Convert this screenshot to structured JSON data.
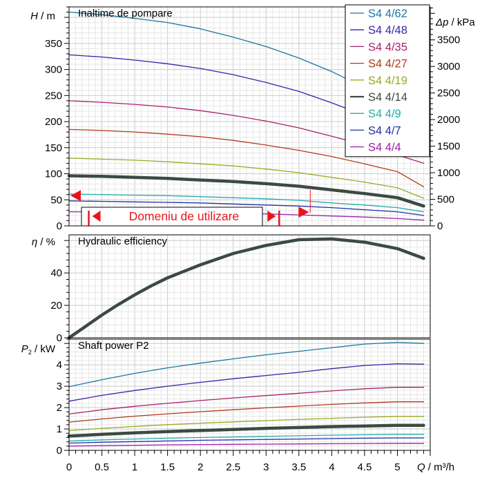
{
  "chart_data": {
    "type": "line",
    "x_axis": {
      "label_var": "Q",
      "label_unit": " / m³/h",
      "ticks": [
        0,
        0.5,
        1,
        1.5,
        2,
        2.5,
        3,
        3.5,
        4,
        4.5,
        5
      ],
      "tick_labels": [
        "0",
        "0.5",
        "1",
        "1.5",
        "2",
        "2.5",
        "3",
        "3.5",
        "4",
        "4.5",
        "5"
      ],
      "range": [
        0,
        5.5
      ]
    },
    "panels": [
      {
        "id": "head",
        "title": "Inaltime de pompare",
        "ylabel_var": "H",
        "ylabel_unit": " / m",
        "ylim": [
          0,
          420
        ],
        "yticks": [
          0,
          50,
          100,
          150,
          200,
          250,
          300,
          350
        ],
        "ytick_labels": [
          "0",
          "50",
          "100",
          "150",
          "200",
          "250",
          "300",
          "350"
        ],
        "right_axis": {
          "label_var": "Δp",
          "label_unit": " / kPa",
          "ticks": [
            0,
            500,
            1000,
            1500,
            2000,
            2500,
            3000,
            3500
          ],
          "tick_labels": [
            "0",
            "500",
            "1000",
            "1500",
            "2000",
            "2500",
            "3000",
            "3500"
          ],
          "range": [
            0,
            4120
          ]
        },
        "series": [
          {
            "name": "S4 4/62",
            "color": "#1a75a3",
            "width": 1.3,
            "x": [
              0,
              0.5,
              1,
              1.5,
              2,
              2.5,
              3,
              3.5,
              4,
              4.5,
              5
            ],
            "y": [
              410,
              405,
              398,
              390,
              378,
              362,
              344,
              322,
              296,
              265,
              230
            ]
          },
          {
            "name": "S4 4/48",
            "color": "#3a1fa8",
            "width": 1.3,
            "x": [
              0,
              0.5,
              1,
              1.5,
              2,
              2.5,
              3,
              3.5,
              4,
              4.5,
              5,
              5.4
            ],
            "y": [
              328,
              324,
              318,
              311,
              302,
              290,
              275,
              258,
              236,
              212,
              188,
              165
            ]
          },
          {
            "name": "S4 4/35",
            "color": "#a8206a",
            "width": 1.3,
            "x": [
              0,
              0.5,
              1,
              1.5,
              2,
              2.5,
              3,
              3.5,
              4,
              4.5,
              5,
              5.4
            ],
            "y": [
              240,
              237,
              233,
              228,
              221,
              212,
              201,
              188,
              172,
              155,
              136,
              120
            ]
          },
          {
            "name": "S4 4/27",
            "color": "#b03a17",
            "width": 1.3,
            "x": [
              0,
              0.5,
              1,
              1.5,
              2,
              2.5,
              3,
              3.5,
              4,
              4.5,
              5,
              5.4
            ],
            "y": [
              185,
              183,
              180,
              176,
              171,
              164,
              155,
              145,
              133,
              119,
              104,
              75
            ]
          },
          {
            "name": "S4 4/19",
            "color": "#98ab1f",
            "width": 1.3,
            "x": [
              0,
              0.5,
              1,
              1.5,
              2,
              2.5,
              3,
              3.5,
              4,
              4.5,
              5,
              5.4
            ],
            "y": [
              130,
              128,
              126,
              123,
              119,
              115,
              109,
              102,
              93,
              84,
              73,
              53
            ]
          },
          {
            "name": "S4 4/14",
            "color": "#3b4a43",
            "width": 4.5,
            "x": [
              0,
              0.5,
              1,
              1.5,
              2,
              2.5,
              3,
              3.5,
              4,
              4.5,
              5,
              5.4
            ],
            "y": [
              96,
              95,
              93,
              91,
              88,
              85,
              81,
              76,
              69,
              62,
              54,
              38
            ]
          },
          {
            "name": "S4 4/9",
            "color": "#22aaa8",
            "width": 1.3,
            "x": [
              0,
              0.5,
              1,
              1.5,
              2,
              2.5,
              3,
              3.5,
              4,
              4.5,
              5,
              5.4
            ],
            "y": [
              61,
              60,
              59,
              58,
              56,
              54,
              52,
              49,
              44,
              40,
              35,
              27
            ]
          },
          {
            "name": "S4 4/7",
            "color": "#1f2fa8",
            "width": 1.3,
            "x": [
              0,
              0.5,
              1,
              1.5,
              2,
              2.5,
              3,
              3.5,
              4,
              4.5,
              5,
              5.4
            ],
            "y": [
              48,
              47,
              46,
              45,
              44,
              42,
              40,
              38,
              35,
              31,
              27,
              20
            ]
          },
          {
            "name": "S4 4/4",
            "color": "#9b1fa8",
            "width": 1.3,
            "x": [
              0,
              0.5,
              1,
              1.5,
              2,
              2.5,
              3,
              3.5,
              4,
              4.5,
              5,
              5.4
            ],
            "y": [
              27,
              27,
              26,
              26,
              25,
              24,
              23,
              21,
              19,
              17,
              14,
              11
            ]
          }
        ]
      },
      {
        "id": "efficiency",
        "title": "Hydraulic efficiency",
        "ylabel_var": "η",
        "ylabel_unit": " / %",
        "ylim": [
          0,
          63.5
        ],
        "yticks": [
          0,
          20,
          40
        ],
        "ytick_labels": [
          "0",
          "20",
          "40"
        ],
        "series": [
          {
            "name": "",
            "color": "#3b4a43",
            "width": 4.5,
            "x": [
              0,
              0.25,
              0.5,
              0.75,
              1,
              1.25,
              1.5,
              1.75,
              2,
              2.5,
              3,
              3.5,
              4,
              4.5,
              5,
              5.4
            ],
            "y": [
              0,
              7,
              14,
              20.5,
              26.5,
              32,
              37,
              41,
              45,
              52,
              57,
              60.5,
              61,
              59,
              55,
              49
            ]
          }
        ]
      },
      {
        "id": "power",
        "title": "Shaft power P2",
        "ylabel_var": "P",
        "ylabel_sub": "2",
        "ylabel_unit": " / kW",
        "ylim": [
          0,
          5.2
        ],
        "yticks": [
          0,
          1,
          2,
          3,
          4
        ],
        "ytick_labels": [
          "0",
          "1",
          "2",
          "3",
          "4"
        ],
        "series": [
          {
            "name": "S4 4/62",
            "color": "#1a75a3",
            "width": 1.3,
            "x": [
              0,
              0.5,
              1,
              1.5,
              2,
              2.5,
              3,
              3.5,
              4,
              4.5,
              5,
              5.4
            ],
            "y": [
              2.98,
              3.3,
              3.6,
              3.86,
              4.08,
              4.28,
              4.47,
              4.63,
              4.8,
              4.97,
              5.05,
              5.0
            ]
          },
          {
            "name": "S4 4/48",
            "color": "#3a1fa8",
            "width": 1.3,
            "x": [
              0,
              0.5,
              1,
              1.5,
              2,
              2.5,
              3,
              3.5,
              4,
              4.5,
              5,
              5.4
            ],
            "y": [
              2.3,
              2.57,
              2.8,
              3.0,
              3.18,
              3.35,
              3.5,
              3.65,
              3.82,
              3.97,
              4.05,
              4.03
            ]
          },
          {
            "name": "S4 4/35",
            "color": "#a8206a",
            "width": 1.3,
            "x": [
              0,
              0.5,
              1,
              1.5,
              2,
              2.5,
              3,
              3.5,
              4,
              4.5,
              5,
              5.4
            ],
            "y": [
              1.7,
              1.9,
              2.06,
              2.2,
              2.33,
              2.45,
              2.56,
              2.67,
              2.78,
              2.88,
              2.95,
              2.95
            ]
          },
          {
            "name": "S4 4/27",
            "color": "#b03a17",
            "width": 1.3,
            "x": [
              0,
              0.5,
              1,
              1.5,
              2,
              2.5,
              3,
              3.5,
              4,
              4.5,
              5,
              5.4
            ],
            "y": [
              1.32,
              1.47,
              1.6,
              1.71,
              1.81,
              1.9,
              1.99,
              2.07,
              2.15,
              2.22,
              2.27,
              2.27
            ]
          },
          {
            "name": "S4 4/19",
            "color": "#98ab1f",
            "width": 1.3,
            "x": [
              0,
              0.5,
              1,
              1.5,
              2,
              2.5,
              3,
              3.5,
              4,
              4.5,
              5,
              5.4
            ],
            "y": [
              0.92,
              1.03,
              1.12,
              1.2,
              1.27,
              1.33,
              1.39,
              1.45,
              1.5,
              1.55,
              1.59,
              1.59
            ]
          },
          {
            "name": "S4 4/14",
            "color": "#3b4a43",
            "width": 4.5,
            "x": [
              0,
              0.5,
              1,
              1.5,
              2,
              2.5,
              3,
              3.5,
              4,
              4.5,
              5,
              5.4
            ],
            "y": [
              0.67,
              0.75,
              0.82,
              0.88,
              0.93,
              0.98,
              1.03,
              1.07,
              1.11,
              1.14,
              1.17,
              1.17
            ]
          },
          {
            "name": "S4 4/9",
            "color": "#22aaa8",
            "width": 1.3,
            "x": [
              0,
              0.5,
              1,
              1.5,
              2,
              2.5,
              3,
              3.5,
              4,
              4.5,
              5,
              5.4
            ],
            "y": [
              0.44,
              0.49,
              0.53,
              0.57,
              0.6,
              0.63,
              0.66,
              0.68,
              0.71,
              0.73,
              0.75,
              0.75
            ]
          },
          {
            "name": "S4 4/7",
            "color": "#1f2fa8",
            "width": 1.3,
            "x": [
              0,
              0.5,
              1,
              1.5,
              2,
              2.5,
              3,
              3.5,
              4,
              4.5,
              5,
              5.4
            ],
            "y": [
              0.34,
              0.38,
              0.41,
              0.44,
              0.47,
              0.49,
              0.51,
              0.53,
              0.55,
              0.57,
              0.58,
              0.58
            ]
          },
          {
            "name": "S4 4/4",
            "color": "#9b1fa8",
            "width": 1.3,
            "x": [
              0,
              0.5,
              1,
              1.5,
              2,
              2.5,
              3,
              3.5,
              4,
              4.5,
              5,
              5.4
            ],
            "y": [
              0.2,
              0.22,
              0.24,
              0.26,
              0.27,
              0.28,
              0.29,
              0.3,
              0.31,
              0.32,
              0.33,
              0.33
            ]
          }
        ]
      }
    ],
    "legend": {
      "placement": "top-right",
      "entries": [
        "S4 4/62",
        "S4 4/48",
        "S4 4/35",
        "S4 4/27",
        "S4 4/19",
        "S4 4/14",
        "S4 4/9",
        "S4 4/7",
        "S4 4/4"
      ]
    },
    "annotation": {
      "text": "Domeniu de utilizare",
      "color": "#e8141b",
      "q_range": [
        0.3,
        3.2
      ],
      "marker_head_values": [
        58,
        25
      ]
    },
    "grid": true
  }
}
